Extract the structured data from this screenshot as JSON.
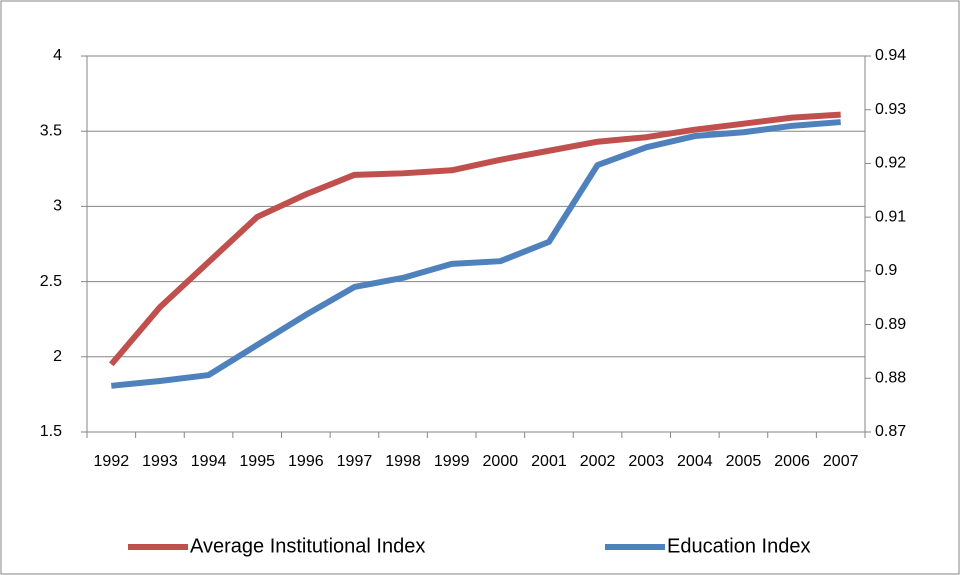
{
  "chart_data": {
    "type": "line",
    "categories": [
      "1992",
      "1993",
      "1994",
      "1995",
      "1996",
      "1997",
      "1998",
      "1999",
      "2000",
      "2001",
      "2002",
      "2003",
      "2004",
      "2005",
      "2006",
      "2007"
    ],
    "series": [
      {
        "name": "Average Institutional Index",
        "color": "#c0504d",
        "axis": "y",
        "values": [
          1.95,
          2.33,
          2.63,
          2.93,
          3.08,
          3.21,
          3.22,
          3.24,
          3.31,
          3.37,
          3.43,
          3.46,
          3.51,
          3.55,
          3.59,
          3.61
        ]
      },
      {
        "name": "Education Index",
        "color": "#4f81bd",
        "axis": "y2",
        "values": [
          0.8786,
          0.8795,
          0.8806,
          0.8862,
          0.8918,
          0.897,
          0.8987,
          0.9013,
          0.9018,
          0.9054,
          0.9197,
          0.923,
          0.9251,
          0.9258,
          0.927,
          0.9277
        ]
      }
    ],
    "ylim": [
      1.5,
      4
    ],
    "yticks": [
      1.5,
      2,
      2.5,
      3,
      3.5,
      4
    ],
    "y2lim": [
      0.87,
      0.94
    ],
    "y2ticks": [
      0.87,
      0.88,
      0.89,
      0.9,
      0.91,
      0.92,
      0.93,
      0.94
    ],
    "grid": true,
    "legend": "bottom"
  }
}
